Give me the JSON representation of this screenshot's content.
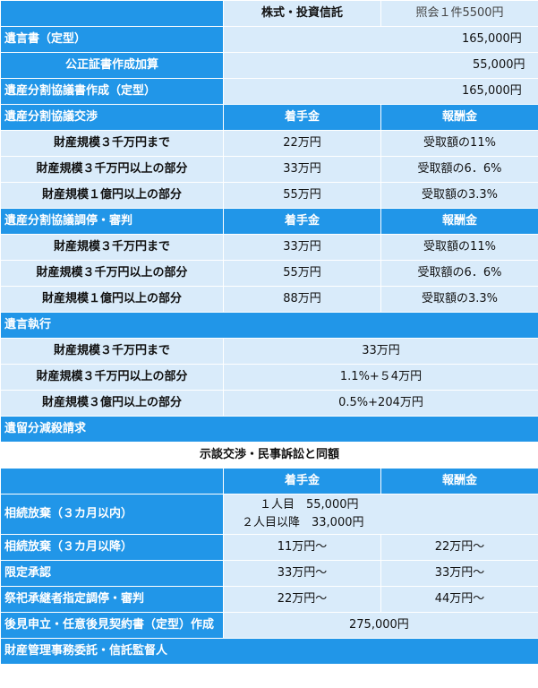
{
  "header": {
    "col2": "株式・投資信託",
    "col3": "照会１件5500円"
  },
  "will": {
    "label": "遺言書（定型）",
    "price": "165,000円",
    "notary_label": "公正証書作成加算",
    "notary_price": "55,000円"
  },
  "agreement_doc": {
    "label": "遺産分割協議書作成（定型）",
    "price": "165,000円"
  },
  "negotiation": {
    "title": "遺産分割協議交渉",
    "h_retainer": "着手金",
    "h_reward": "報酬金",
    "rows": [
      {
        "label": "財産規模３千万円まで",
        "retainer": "22万円",
        "reward": "受取額の11%"
      },
      {
        "label": "財産規模３千万円以上の部分",
        "retainer": "33万円",
        "reward": "受取額の6．6%"
      },
      {
        "label": "財産規模１億円以上の部分",
        "retainer": "55万円",
        "reward": "受取額の3.3%"
      }
    ]
  },
  "mediation": {
    "title": "遺産分割協議調停・審判",
    "h_retainer": "着手金",
    "h_reward": "報酬金",
    "rows": [
      {
        "label": "財産規模３千万円まで",
        "retainer": "33万円",
        "reward": "受取額の11%"
      },
      {
        "label": "財産規模３千万円以上の部分",
        "retainer": "55万円",
        "reward": "受取額の6．6%"
      },
      {
        "label": "財産規模１億円以上の部分",
        "retainer": "88万円",
        "reward": "受取額の3.3%"
      }
    ]
  },
  "execution": {
    "title": "遺言執行",
    "rows": [
      {
        "label": "財産規模３千万円まで",
        "value": "33万円"
      },
      {
        "label": "財産規模３千万円以上の部分",
        "value": "1.1%+５4万円"
      },
      {
        "label": "財産規模３億円以上の部分",
        "value": "0.5%+204万円"
      }
    ]
  },
  "reserved": {
    "title": "遺留分減殺請求",
    "note": "示談交渉・民事訴訟と同額"
  },
  "misc": {
    "h_retainer": "着手金",
    "h_reward": "報酬金",
    "renounce_label": "相続放棄（３カ月以内）",
    "renounce_line1": "１人目　55,000円",
    "renounce_line2": "２人目以降　33,000円",
    "renounce_after_label": "相続放棄（３カ月以降）",
    "renounce_after_retainer": "11万円～",
    "renounce_after_reward": "22万円～",
    "limited_label": "限定承認",
    "limited_retainer": "33万円～",
    "limited_reward": "33万円～",
    "ritual_label": "祭祀承継者指定調停・審判",
    "ritual_retainer": "22万円～",
    "ritual_reward": "44万円～",
    "guardian_label": "後見申立・任意後見契約書（定型）作成",
    "guardian_price": "275,000円",
    "admin_label": "財産管理事務委託・信託監督人"
  }
}
